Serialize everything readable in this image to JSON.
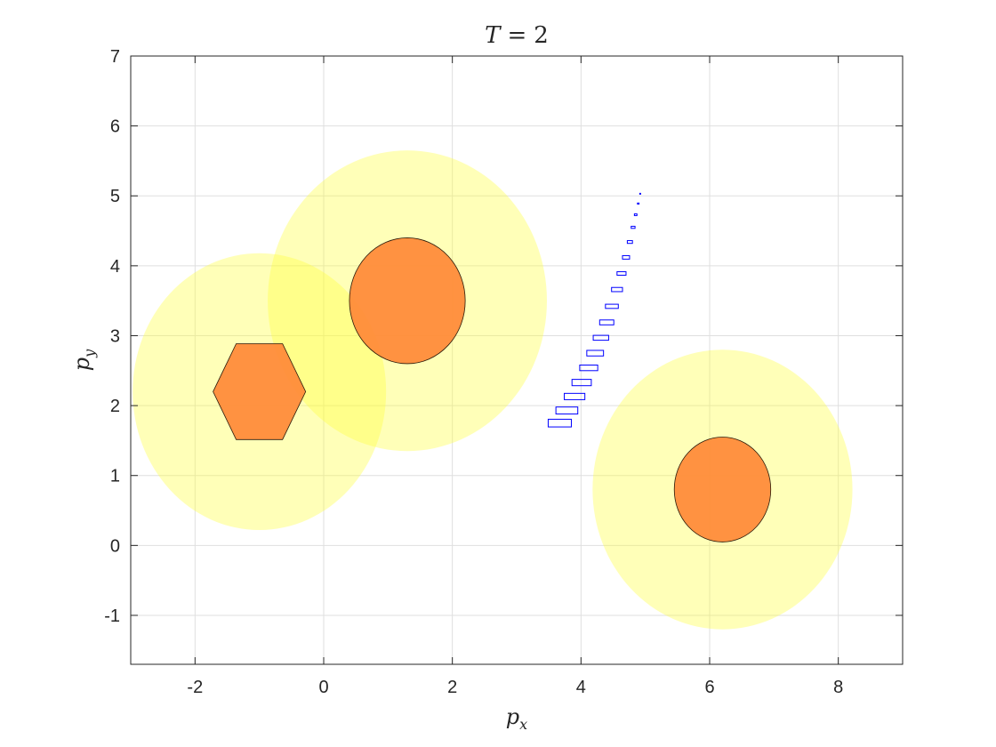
{
  "chart_data": {
    "type": "scatter",
    "title": {
      "lhs": "T",
      "op": "=",
      "rhs": "2"
    },
    "xlabel": {
      "base": "p",
      "sub": "x"
    },
    "ylabel": {
      "base": "p",
      "sub": "y"
    },
    "xlim": [
      -3,
      9
    ],
    "ylim": [
      -1.7,
      7
    ],
    "xticks": [
      -2,
      0,
      2,
      4,
      6,
      8
    ],
    "yticks": [
      -1,
      0,
      1,
      2,
      3,
      4,
      5,
      6,
      7
    ],
    "grid": true,
    "obstacles": [
      {
        "name": "hexagon-obstacle",
        "shape": "hexagon",
        "center": [
          -1.0,
          2.2
        ],
        "radius": 0.72,
        "safety_rx": 1.97,
        "safety_ry": 1.98
      },
      {
        "name": "ellipse-obstacle-1",
        "shape": "ellipse",
        "center": [
          1.3,
          3.5
        ],
        "rx": 0.9,
        "ry": 0.9,
        "safety_rx": 2.17,
        "safety_ry": 2.15
      },
      {
        "name": "ellipse-obstacle-2",
        "shape": "ellipse",
        "center": [
          6.2,
          0.8
        ],
        "rx": 0.75,
        "ry": 0.75,
        "safety_rx": 2.02,
        "safety_ry": 2.0
      }
    ],
    "trajectory_boxes": [
      {
        "x": 3.67,
        "y": 1.75,
        "w": 0.36,
        "h": 0.11
      },
      {
        "x": 3.78,
        "y": 1.93,
        "w": 0.34,
        "h": 0.1
      },
      {
        "x": 3.9,
        "y": 2.13,
        "w": 0.32,
        "h": 0.09
      },
      {
        "x": 4.01,
        "y": 2.33,
        "w": 0.3,
        "h": 0.09
      },
      {
        "x": 4.12,
        "y": 2.54,
        "w": 0.28,
        "h": 0.08
      },
      {
        "x": 4.22,
        "y": 2.75,
        "w": 0.26,
        "h": 0.08
      },
      {
        "x": 4.31,
        "y": 2.97,
        "w": 0.24,
        "h": 0.07
      },
      {
        "x": 4.4,
        "y": 3.19,
        "w": 0.22,
        "h": 0.07
      },
      {
        "x": 4.48,
        "y": 3.42,
        "w": 0.2,
        "h": 0.06
      },
      {
        "x": 4.56,
        "y": 3.66,
        "w": 0.17,
        "h": 0.06
      },
      {
        "x": 4.63,
        "y": 3.89,
        "w": 0.14,
        "h": 0.05
      },
      {
        "x": 4.7,
        "y": 4.12,
        "w": 0.11,
        "h": 0.05
      },
      {
        "x": 4.76,
        "y": 4.34,
        "w": 0.08,
        "h": 0.04
      },
      {
        "x": 4.81,
        "y": 4.55,
        "w": 0.06,
        "h": 0.03
      },
      {
        "x": 4.85,
        "y": 4.73,
        "w": 0.04,
        "h": 0.025
      },
      {
        "x": 4.89,
        "y": 4.89,
        "w": 0.025,
        "h": 0.015
      },
      {
        "x": 4.92,
        "y": 5.03,
        "w": 0.01,
        "h": 0.01
      }
    ],
    "colors": {
      "safety_region": "#ffff33",
      "safety_opacity": 0.35,
      "obstacle": "#ff8c3a",
      "obstacle_edge": "#2a1a0a",
      "trajectory": "#0000ff",
      "grid": "#dfdfdf",
      "axis": "#262626"
    }
  }
}
